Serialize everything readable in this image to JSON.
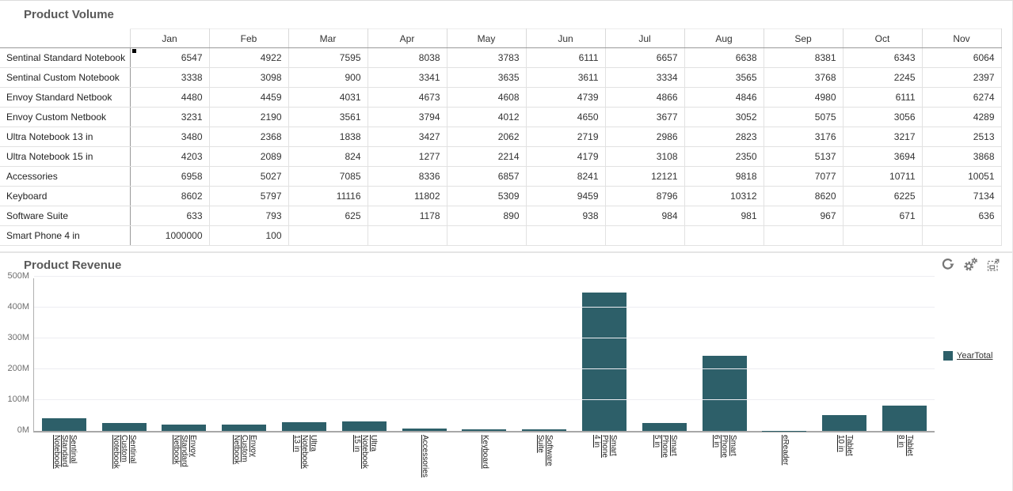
{
  "volume_panel": {
    "title": "Product Volume",
    "columns": [
      "Jan",
      "Feb",
      "Mar",
      "Apr",
      "May",
      "Jun",
      "Jul",
      "Aug",
      "Sep",
      "Oct",
      "Nov"
    ],
    "rows": [
      {
        "label": "Sentinal Standard Notebook",
        "marker": true,
        "values": [
          6547,
          4922,
          7595,
          8038,
          3783,
          6111,
          6657,
          6638,
          8381,
          6343,
          6064
        ]
      },
      {
        "label": "Sentinal Custom Notebook",
        "values": [
          3338,
          3098,
          900,
          3341,
          3635,
          3611,
          3334,
          3565,
          3768,
          2245,
          2397
        ]
      },
      {
        "label": "Envoy Standard Netbook",
        "values": [
          4480,
          4459,
          4031,
          4673,
          4608,
          4739,
          4866,
          4846,
          4980,
          6111,
          6274
        ]
      },
      {
        "label": "Envoy Custom Netbook",
        "values": [
          3231,
          2190,
          3561,
          3794,
          4012,
          4650,
          3677,
          3052,
          5075,
          3056,
          4289
        ]
      },
      {
        "label": "Ultra Notebook 13 in",
        "values": [
          3480,
          2368,
          1838,
          3427,
          2062,
          2719,
          2986,
          2823,
          3176,
          3217,
          2513
        ]
      },
      {
        "label": "Ultra Notebook 15 in",
        "values": [
          4203,
          2089,
          824,
          1277,
          2214,
          4179,
          3108,
          2350,
          5137,
          3694,
          3868
        ]
      },
      {
        "label": "Accessories",
        "values": [
          6958,
          5027,
          7085,
          8336,
          6857,
          8241,
          12121,
          9818,
          7077,
          10711,
          10051
        ]
      },
      {
        "label": "Keyboard",
        "values": [
          8602,
          5797,
          11116,
          11802,
          5309,
          9459,
          8796,
          10312,
          8620,
          6225,
          7134
        ]
      },
      {
        "label": "Software Suite",
        "values": [
          633,
          793,
          625,
          1178,
          890,
          938,
          984,
          981,
          967,
          671,
          636
        ]
      },
      {
        "label": "Smart Phone 4 in",
        "values": [
          1000000,
          100,
          "",
          "",
          "",
          "",
          "",
          "",
          "",
          "",
          ""
        ]
      }
    ]
  },
  "revenue_panel": {
    "title": "Product Revenue",
    "toolbar": [
      {
        "name": "refresh-icon"
      },
      {
        "name": "settings-icon"
      },
      {
        "name": "maximize-icon"
      }
    ],
    "legend": {
      "label": "YearTotal",
      "color": "#2d5f69",
      "position": "right"
    },
    "icon_color": "#767676"
  },
  "chart_data": {
    "type": "bar",
    "title": "Product Revenue",
    "categories": [
      "Sentinal Standard Notebook",
      "Sentinal Custom Notebook",
      "Envoy Standard Netbook",
      "Envoy Custom Netbook",
      "Ultra Notebook 13 in",
      "Ultra Notebook 15 in",
      "Accessories",
      "Keyboard",
      "Software Suite",
      "Smart Phone 4 in",
      "Smart Phone 5 in",
      "Smart Phone 6 in",
      "eReader",
      "Tablet 10 in",
      "Tablet 8 in"
    ],
    "tick_label_lines": [
      [
        "Sentinal",
        "Standard",
        "Notebook"
      ],
      [
        "Sentinal",
        "Custom",
        "Notebook"
      ],
      [
        "Envoy",
        "Standard",
        "Netbook"
      ],
      [
        "Envoy",
        "Custom",
        "Netbook"
      ],
      [
        "Ultra",
        "Notebook",
        "13 in"
      ],
      [
        "Ultra",
        "Notebook",
        "15 in"
      ],
      [
        "Accessories"
      ],
      [
        "Keyboard"
      ],
      [
        "Software",
        "Suite"
      ],
      [
        "Smart",
        "Phone",
        "4 in"
      ],
      [
        "Smart",
        "Phone",
        "5 in"
      ],
      [
        "Smart",
        "Phone",
        "6 in"
      ],
      [
        "eReader"
      ],
      [
        "Tablet",
        "10 in"
      ],
      [
        "Tablet",
        "8 in"
      ]
    ],
    "series": [
      {
        "name": "YearTotal",
        "values": [
          40000000,
          25000000,
          20000000,
          20000000,
          28000000,
          31000000,
          8000000,
          5000000,
          5000000,
          450000000,
          26000000,
          243000000,
          1000000,
          52000000,
          82000000
        ]
      }
    ],
    "xlabel": "",
    "ylabel": "",
    "y_ticks": [
      "0M",
      "100M",
      "200M",
      "300M",
      "400M",
      "500M"
    ],
    "ylim": [
      0,
      500000000
    ],
    "grid": "horizontal",
    "bar_color": "#2d5f69",
    "legend_position": "right"
  }
}
